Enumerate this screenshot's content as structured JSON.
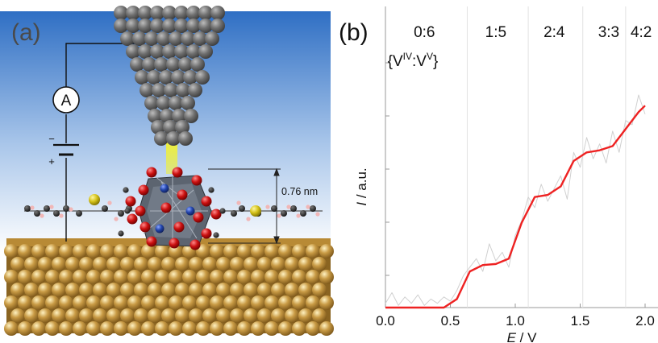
{
  "figure": {
    "panel_a": {
      "label": "(a)",
      "ammeter_label": "A",
      "battery_minus": "−",
      "battery_plus": "+",
      "dimension_label": "0.76 nm",
      "colors": {
        "sky_top": "#2f6fc4",
        "sky_bottom": "#ffffff",
        "tip": "#666666",
        "gold": "#b8893a",
        "tunnel": "#f2f233",
        "oxygen": "#cc1111",
        "vanadium": "#2244aa",
        "sulfur": "#d4c21a"
      }
    },
    "panel_b": {
      "label": "(b)",
      "ratio_labels": [
        "0:6",
        "1:5",
        "2:4",
        "3:3",
        "4:2"
      ],
      "ratio_header_prefix": "{V",
      "ratio_header_sup1": "IV",
      "ratio_header_mid": ":V",
      "ratio_header_sup2": "V",
      "ratio_header_suffix": "}",
      "ylabel_italic": "I",
      "ylabel_rest": " / a.u.",
      "xlabel_italic": "E",
      "xlabel_rest": " / V"
    }
  },
  "chart_data": {
    "type": "line",
    "xlabel": "E / V",
    "ylabel": "I / a.u.",
    "xlim": [
      0.0,
      2.0
    ],
    "ylim": [
      0.0,
      1.0
    ],
    "x_ticks": [
      "0.0",
      "0.5",
      "1.0",
      "1.5",
      "2.0"
    ],
    "vertical_markers_x": [
      0.63,
      1.1,
      1.52,
      1.85
    ],
    "series": [
      {
        "color": "#ee2222",
        "x": [
          0.0,
          0.45,
          0.55,
          0.65,
          0.75,
          0.85,
          0.95,
          1.05,
          1.15,
          1.25,
          1.35,
          1.45,
          1.55,
          1.65,
          1.75,
          1.85,
          1.95,
          2.0
        ],
        "y": [
          0.0,
          0.0,
          0.04,
          0.17,
          0.2,
          0.205,
          0.23,
          0.4,
          0.52,
          0.53,
          0.57,
          0.69,
          0.73,
          0.74,
          0.76,
          0.84,
          0.92,
          0.95
        ]
      },
      {
        "color": "#d0d0d0",
        "x": [
          0.0,
          0.05,
          0.1,
          0.15,
          0.2,
          0.25,
          0.3,
          0.35,
          0.4,
          0.45,
          0.5,
          0.55,
          0.6,
          0.65,
          0.7,
          0.75,
          0.8,
          0.85,
          0.9,
          0.95,
          1.0,
          1.05,
          1.1,
          1.15,
          1.2,
          1.25,
          1.3,
          1.35,
          1.4,
          1.45,
          1.5,
          1.55,
          1.6,
          1.65,
          1.7,
          1.75,
          1.8,
          1.85,
          1.9,
          1.95,
          2.0
        ],
        "y": [
          0.02,
          0.07,
          0.01,
          0.05,
          0.02,
          0.06,
          0.01,
          0.04,
          0.02,
          0.05,
          0.03,
          0.08,
          0.15,
          0.19,
          0.23,
          0.17,
          0.3,
          0.22,
          0.26,
          0.19,
          0.34,
          0.41,
          0.52,
          0.47,
          0.58,
          0.5,
          0.56,
          0.62,
          0.51,
          0.73,
          0.66,
          0.8,
          0.7,
          0.77,
          0.68,
          0.83,
          0.73,
          0.88,
          0.86,
          1.0,
          0.91
        ]
      }
    ]
  }
}
